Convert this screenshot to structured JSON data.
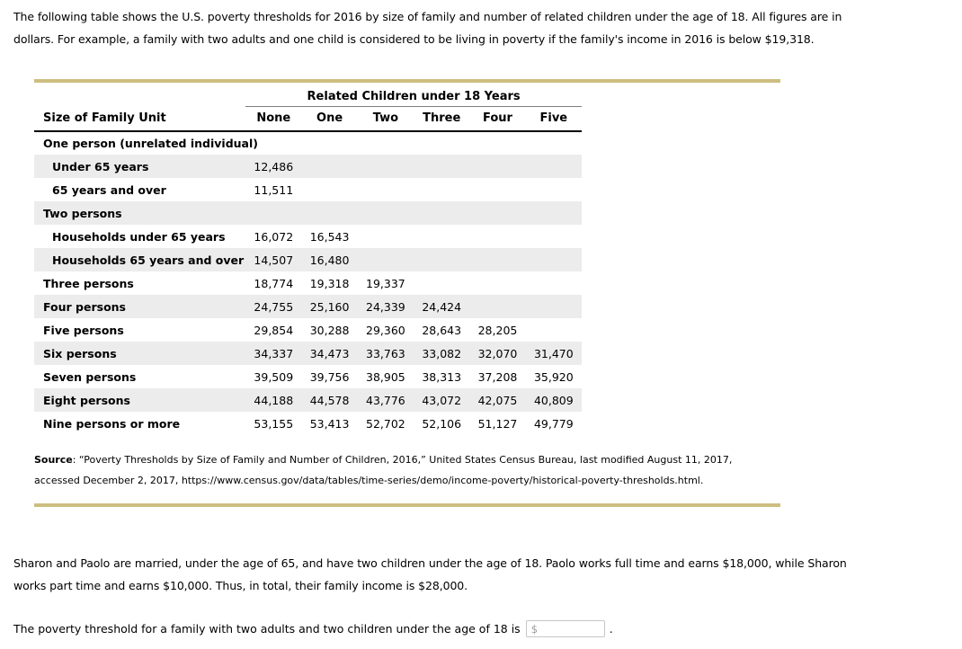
{
  "intro": "The following table shows the U.S. poverty thresholds for 2016 by size of family and number of related children under the age of 18. All figures are in dollars. For example, a family with two adults and one child is considered to be living in poverty if the family's income in 2016 is below $19,318.",
  "table": {
    "group_header": "Related Children under 18 Years",
    "row_header": "Size of Family Unit",
    "columns": [
      "None",
      "One",
      "Two",
      "Three",
      "Four",
      "Five"
    ],
    "rows": [
      {
        "label": "One person (unrelated individual)",
        "indent": false,
        "values": []
      },
      {
        "label": "Under 65 years",
        "indent": true,
        "values": [
          "12,486"
        ]
      },
      {
        "label": "65 years and over",
        "indent": true,
        "values": [
          "11,511"
        ]
      },
      {
        "label": "Two persons",
        "indent": false,
        "values": []
      },
      {
        "label": "Households under 65 years",
        "indent": true,
        "values": [
          "16,072",
          "16,543"
        ]
      },
      {
        "label": "Households 65 years and over",
        "indent": true,
        "values": [
          "14,507",
          "16,480"
        ]
      },
      {
        "label": "Three persons",
        "indent": false,
        "values": [
          "18,774",
          "19,318",
          "19,337"
        ]
      },
      {
        "label": "Four persons",
        "indent": false,
        "values": [
          "24,755",
          "25,160",
          "24,339",
          "24,424"
        ]
      },
      {
        "label": "Five persons",
        "indent": false,
        "values": [
          "29,854",
          "30,288",
          "29,360",
          "28,643",
          "28,205"
        ]
      },
      {
        "label": "Six persons",
        "indent": false,
        "values": [
          "34,337",
          "34,473",
          "33,763",
          "33,082",
          "32,070",
          "31,470"
        ]
      },
      {
        "label": "Seven persons",
        "indent": false,
        "values": [
          "39,509",
          "39,756",
          "38,905",
          "38,313",
          "37,208",
          "35,920"
        ]
      },
      {
        "label": "Eight persons",
        "indent": false,
        "values": [
          "44,188",
          "44,578",
          "43,776",
          "43,072",
          "42,075",
          "40,809"
        ]
      },
      {
        "label": "Nine persons or more",
        "indent": false,
        "values": [
          "53,155",
          "53,413",
          "52,702",
          "52,106",
          "51,127",
          "49,779"
        ]
      }
    ]
  },
  "source": {
    "label": "Source",
    "text": ": “Poverty Thresholds by Size of Family and Number of Children, 2016,” United States Census Bureau, last modified August 11, 2017, accessed December 2, 2017, https://www.census.gov/data/tables/time-series/demo/income-poverty/historical-poverty-thresholds.html."
  },
  "scenario": "Sharon and Paolo are married, under the age of 65, and have two children under the age of 18. Paolo works full time and earns $18,000, while Sharon works part time and earns $10,000. Thus, in total, their family income is $28,000.",
  "question": {
    "prompt": "The poverty threshold for a family with two adults and two children under the age of 18 is",
    "currency_symbol": "$",
    "input_value": "",
    "suffix": "."
  },
  "colors": {
    "rule_gold": "#cdbe80",
    "row_stripe": "#ececec",
    "header_line_black": "#000000",
    "group_underline_gray": "#7d7d7d",
    "input_border": "#c6c6c6",
    "dollar_gray": "#9a9a9a"
  }
}
